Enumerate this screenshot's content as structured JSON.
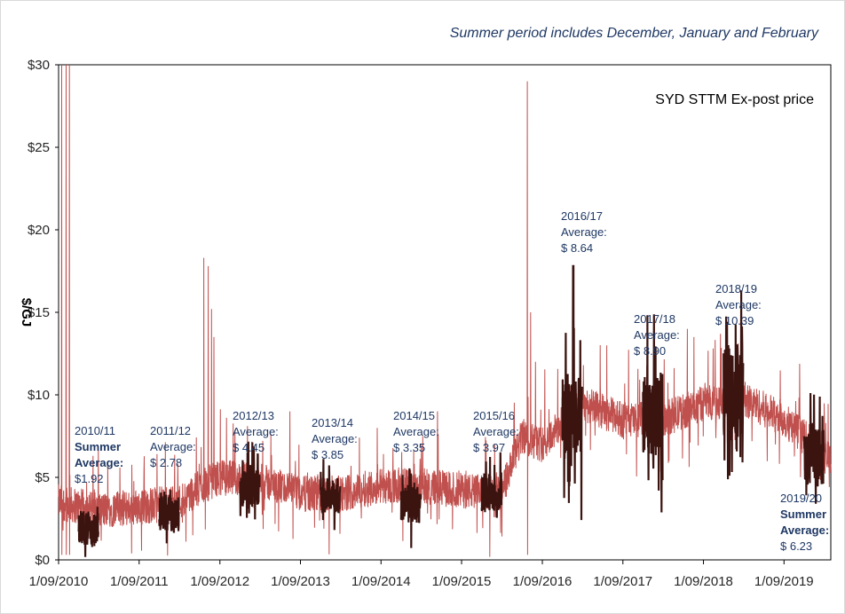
{
  "chart_data": {
    "type": "line",
    "subtitle": "Summer period includes December, January and February",
    "ylabel": "$/GJ",
    "xlabel": "",
    "ylim": [
      0,
      30
    ],
    "y_ticks": [
      "$0",
      "$5",
      "$10",
      "$15",
      "$20",
      "$25",
      "$30"
    ],
    "y_tick_values": [
      0,
      5,
      10,
      15,
      20,
      25,
      30
    ],
    "x_ticks": [
      "1/09/2010",
      "1/09/2011",
      "1/09/2012",
      "1/09/2013",
      "1/09/2014",
      "1/09/2015",
      "1/09/2016",
      "1/09/2017",
      "1/09/2018",
      "1/09/2019"
    ],
    "x_range": [
      "2010-09-01",
      "2020-03-31"
    ],
    "legend_placement": "top-right",
    "grid": false,
    "series": [
      {
        "name": "SYD STTM Ex-post price",
        "color": "#c0504d",
        "baseline": [
          {
            "x": "2010-09-01",
            "y": 3.5
          },
          {
            "x": "2011-02-28",
            "y": 3.0
          },
          {
            "x": "2011-09-01",
            "y": 3.2
          },
          {
            "x": "2012-02-28",
            "y": 3.5
          },
          {
            "x": "2012-06-15",
            "y": 4.5
          },
          {
            "x": "2012-09-01",
            "y": 5.0
          },
          {
            "x": "2013-02-28",
            "y": 4.8
          },
          {
            "x": "2013-09-01",
            "y": 4.0
          },
          {
            "x": "2014-02-28",
            "y": 4.0
          },
          {
            "x": "2014-09-01",
            "y": 4.5
          },
          {
            "x": "2015-02-28",
            "y": 4.5
          },
          {
            "x": "2015-09-01",
            "y": 4.2
          },
          {
            "x": "2016-02-28",
            "y": 4.0
          },
          {
            "x": "2016-06-01",
            "y": 7.5
          },
          {
            "x": "2016-09-01",
            "y": 7.0
          },
          {
            "x": "2017-02-28",
            "y": 9.5
          },
          {
            "x": "2017-09-01",
            "y": 8.5
          },
          {
            "x": "2018-02-28",
            "y": 8.5
          },
          {
            "x": "2018-09-01",
            "y": 9.5
          },
          {
            "x": "2019-02-28",
            "y": 9.8
          },
          {
            "x": "2019-09-01",
            "y": 8.5
          },
          {
            "x": "2020-03-31",
            "y": 6.0
          }
        ],
        "spikes": [
          {
            "x": "2010-09-15",
            "y": 30
          },
          {
            "x": "2010-10-05",
            "y": 30
          },
          {
            "x": "2010-10-20",
            "y": 30
          },
          {
            "x": "2012-06-20",
            "y": 18.3
          },
          {
            "x": "2012-07-10",
            "y": 17.8
          },
          {
            "x": "2012-07-25",
            "y": 15.2
          },
          {
            "x": "2012-08-05",
            "y": 13.5
          },
          {
            "x": "2013-07-15",
            "y": 9.0
          },
          {
            "x": "2014-08-15",
            "y": 8.0
          },
          {
            "x": "2015-05-15",
            "y": 9.0
          },
          {
            "x": "2016-06-25",
            "y": 29.0
          },
          {
            "x": "2016-07-10",
            "y": 15.0
          },
          {
            "x": "2016-08-01",
            "y": 12.0
          },
          {
            "x": "2017-06-20",
            "y": 13.0
          },
          {
            "x": "2018-06-20",
            "y": 14.0
          },
          {
            "x": "2018-07-20",
            "y": 13.5
          }
        ]
      },
      {
        "name": "Summer period",
        "color": "#3b1410",
        "summers": [
          {
            "start": "2010-12-01",
            "end": "2011-02-28",
            "average": 1.92
          },
          {
            "start": "2011-12-01",
            "end": "2012-02-28",
            "average": 2.78
          },
          {
            "start": "2012-12-01",
            "end": "2013-02-28",
            "average": 4.45
          },
          {
            "start": "2013-12-01",
            "end": "2014-02-28",
            "average": 3.85
          },
          {
            "start": "2014-12-01",
            "end": "2015-02-28",
            "average": 3.35
          },
          {
            "start": "2015-12-01",
            "end": "2016-02-29",
            "average": 3.97
          },
          {
            "start": "2016-12-01",
            "end": "2017-02-28",
            "average": 8.64,
            "peak": 17.8
          },
          {
            "start": "2017-12-01",
            "end": "2018-02-28",
            "average": 8.9
          },
          {
            "start": "2018-12-01",
            "end": "2019-02-28",
            "average": 10.39
          },
          {
            "start": "2019-12-01",
            "end": "2020-02-29",
            "average": 6.23
          }
        ]
      }
    ],
    "annotations": [
      {
        "lines": [
          "2010/11",
          "Summer",
          "Average:",
          "$1.92"
        ],
        "bold": [
          false,
          true,
          true,
          false
        ]
      },
      {
        "lines": [
          "2011/12",
          "Average:",
          "$ 2.78"
        ],
        "bold": [
          false,
          false,
          false
        ]
      },
      {
        "lines": [
          "2012/13",
          "Average:",
          "$ 4.45"
        ],
        "bold": [
          false,
          false,
          false
        ]
      },
      {
        "lines": [
          "2013/14",
          "Average:",
          "$ 3.85"
        ],
        "bold": [
          false,
          false,
          false
        ]
      },
      {
        "lines": [
          "2014/15",
          "Average:",
          "$ 3.35"
        ],
        "bold": [
          false,
          false,
          false
        ]
      },
      {
        "lines": [
          "2015/16",
          "Average:",
          "$ 3.97"
        ],
        "bold": [
          false,
          false,
          false
        ]
      },
      {
        "lines": [
          "2016/17",
          "Average:",
          "$ 8.64"
        ],
        "bold": [
          false,
          false,
          false
        ]
      },
      {
        "lines": [
          "2017/18",
          "Average:",
          "$ 8.90"
        ],
        "bold": [
          false,
          false,
          false
        ]
      },
      {
        "lines": [
          "2018/19",
          "Average:",
          "$ 10.39"
        ],
        "bold": [
          false,
          false,
          false
        ]
      },
      {
        "lines": [
          "2019/20",
          "Summer",
          "Average:",
          "$ 6.23"
        ],
        "bold": [
          false,
          true,
          true,
          false
        ]
      }
    ]
  }
}
